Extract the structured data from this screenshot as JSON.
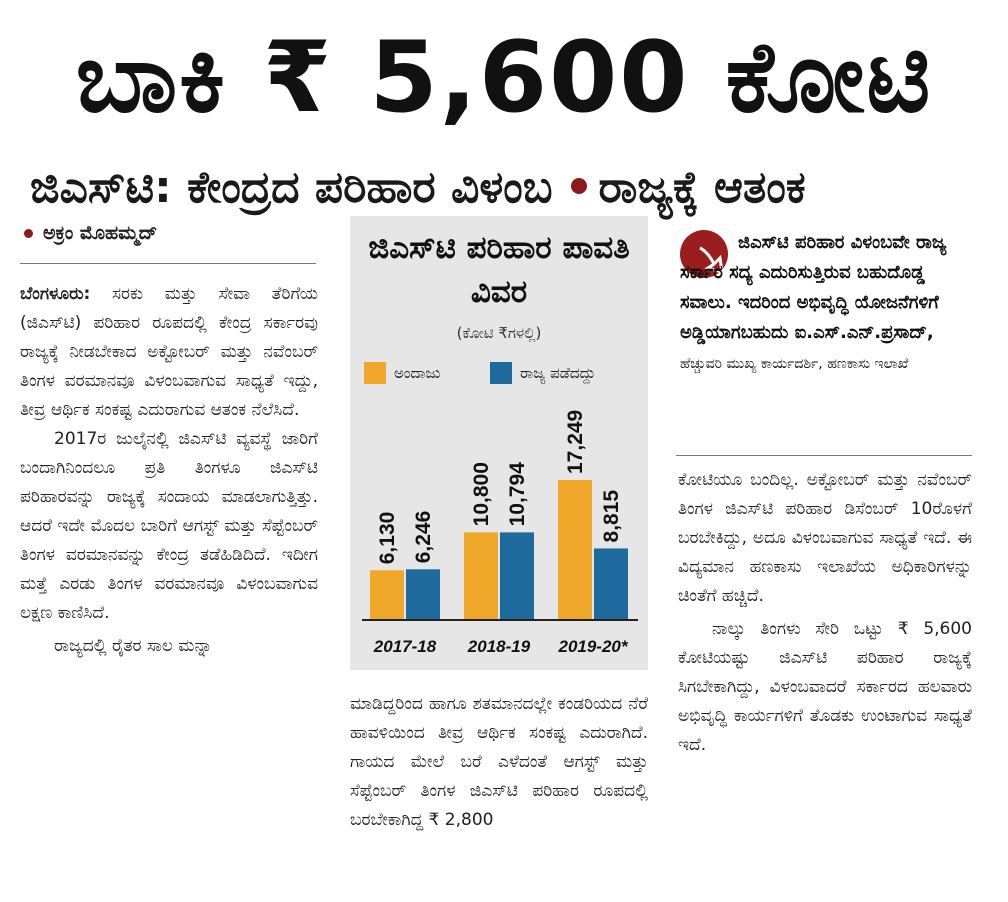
{
  "headline": "ಬಾಕಿ ₹ 5,600 ಕೋಟಿ",
  "subheadline": {
    "left": "ಜಿಎಸ್‌ಟಿ: ಕೇಂದ್ರದ ಪರಿಹಾರ ವಿಳಂಬ",
    "right": "ರಾಜ್ಯಕ್ಕೆ ಆತಂಕ"
  },
  "byline": "ಅಕ್ರಂ ಮೊಹಮ್ಮದ್",
  "left_column": {
    "lead": "ಬೆಂಗಳೂರು:",
    "p1": "ಸರಕು ಮತ್ತು ಸೇವಾ ತೆರಿಗೆಯ (ಜಿಎಸ್‌ಟಿ) ಪರಿಹಾರ ರೂಪದಲ್ಲಿ ಕೇಂದ್ರ ಸರ್ಕಾರವು ರಾಜ್ಯಕ್ಕೆ ನೀಡಬೇಕಾದ ಅಕ್ಟೋಬರ್ ಮತ್ತು ನವೆಂಬರ್ ತಿಂಗಳ ವರಮಾನವೂ ವಿಳಂಬವಾಗುವ ಸಾಧ್ಯತೆ ಇದ್ದು, ತೀವ್ರ ಆರ್ಥಿಕ ಸಂಕಷ್ಟ ಎದುರಾಗುವ ಆತಂಕ ನೆಲೆಸಿದೆ.",
    "p2": "2017ರ ಜುಲೈನಲ್ಲಿ ಜಿಎಸ್‌ಟಿ ವ್ಯವಸ್ಥೆ ಜಾರಿಗೆ ಬಂದಾಗಿನಿಂದಲೂ ಪ್ರತಿ ತಿಂಗಳೂ ಜಿಎಸ್‌ಟಿ ಪರಿಹಾರವನ್ನು ರಾಜ್ಯಕ್ಕೆ ಸಂದಾಯ ಮಾಡಲಾಗುತ್ತಿತ್ತು. ಆದರೆ ಇದೇ ಮೊದಲ ಬಾರಿಗೆ ಆಗಸ್ಟ್ ಮತ್ತು ಸೆಪ್ಟೆಂಬರ್ ತಿಂಗಳ ವರಮಾನವನ್ನು ಕೇಂದ್ರ ತಡೆಹಿಡಿದಿದೆ. ಇದೀಗ ಮತ್ತೆ ಎರಡು ತಿಂಗಳ ವರಮಾನವೂ ವಿಳಂಬವಾಗುವ ಲಕ್ಷಣ ಕಾಣಿಸಿದೆ.",
    "p3": "ರಾಜ್ಯದಲ್ಲಿ ರೈತರ ಸಾಲ ಮನ್ನಾ"
  },
  "middle_column": {
    "p1": "ಮಾಡಿದ್ದರಿಂದ ಹಾಗೂ ಶತಮಾನದಲ್ಲೇ ಕಂಡರಿಯದ ನೆರೆ ಹಾವಳಿಯಿಂದ ತೀವ್ರ ಆರ್ಥಿಕ ಸಂಕಷ್ಟ ಎದುರಾಗಿದೆ. ಗಾಯದ ಮೇಲೆ ಬರೆ ಎಳೆದಂತೆ ಆಗಸ್ಟ್ ಮತ್ತು ಸೆಪ್ಟೆಂಬರ್ ತಿಂಗಳ ಜಿಎಸ್‌ಟಿ ಪರಿಹಾರ ರೂಪದಲ್ಲಿ ಬರಬೇಕಾಗಿದ್ದ ₹ 2,800"
  },
  "quote": {
    "text": "ಜಿಎಸ್‌ಟಿ ಪರಿಹಾರ ವಿಳಂಬವೇ ರಾಜ್ಯ ಸರ್ಕಾರ ಸದ್ಯ ಎದುರಿಸುತ್ತಿರುವ ಬಹುದೊಡ್ಡ ಸವಾಲು. ಇದರಿಂದ ಅಭಿವೃದ್ಧಿ ಯೋಜನೆಗಳಿಗೆ ಅಡ್ಡಿಯಾಗಬಹುದು",
    "name": "ಐ.ಎಸ್.ಎನ್.ಪ್ರಸಾದ್,",
    "role": "ಹೆಚ್ಚುವರಿ ಮುಖ್ಯ ಕಾರ್ಯದರ್ಶಿ, ಹಣಕಾಸು ಇಲಾಖೆ",
    "icon": "quote-mark-icon"
  },
  "right_column": {
    "p1": "ಕೋಟಿಯೂ ಬಂದಿಲ್ಲ. ಅಕ್ಟೋಬರ್ ಮತ್ತು ನವೆಂಬರ್ ತಿಂಗಳ ಜಿಎಸ್‌ಟಿ ಪರಿಹಾರ ಡಿಸೆಂಬರ್ 10ರೊಳಗೆ ಬರಬೇಕಿದ್ದು, ಅದೂ ವಿಳಂಬವಾಗುವ ಸಾಧ್ಯತೆ ಇದೆ. ಈ ವಿದ್ಯಮಾನ ಹಣಕಾಸು ಇಲಾಖೆಯ ಅಧಿಕಾರಿಗಳನ್ನು ಚಿಂತೆಗೆ ಹಚ್ಚಿದೆ.",
    "p2": "ನಾಲ್ಕು ತಿಂಗಳು ಸೇರಿ ಒಟ್ಟು ₹ 5,600 ಕೋಟಿಯಷ್ಟು ಜಿಎಸ್‌ಟಿ ಪರಿಹಾರ ರಾಜ್ಯಕ್ಕೆ ಸಿಗಬೇಕಾಗಿದ್ದು, ವಿಳಂಬವಾದರೆ ಸರ್ಕಾರದ ಹಲವಾರು ಅಭಿವೃದ್ಧಿ ಕಾರ್ಯಗಳಿಗೆ ತೊಡಕು ಉಂಟಾಗುವ ಸಾಧ್ಯತೆ ಇದೆ."
  },
  "colors": {
    "accent_dot": "#8b1a1a",
    "series_estimate": "#f0a82a",
    "series_received": "#1f6a9c",
    "chart_bg": "#e6e6e6"
  },
  "chart_data": {
    "type": "bar",
    "title": "ಜಿಎಸ್‌ಟಿ ಪರಿಹಾರ ಪಾವತಿ ವಿವರ",
    "subtitle": "(ಕೋಟಿ ₹ಗಳಲ್ಲಿ)",
    "categories": [
      "2017-18",
      "2018-19",
      "2019-20*"
    ],
    "series": [
      {
        "name": "ಅಂದಾಜು",
        "values": [
          6130,
          10800,
          17249
        ]
      },
      {
        "name": "ರಾಜ್ಯ ಪಡೆದದ್ದು",
        "values": [
          6246,
          10794,
          8815
        ]
      }
    ],
    "value_labels": [
      [
        "6,130",
        "10,800",
        "17,249"
      ],
      [
        "6,246",
        "10,794",
        "8,815"
      ]
    ],
    "ylim": [
      0,
      17249
    ],
    "grid": false,
    "legend": "top"
  }
}
